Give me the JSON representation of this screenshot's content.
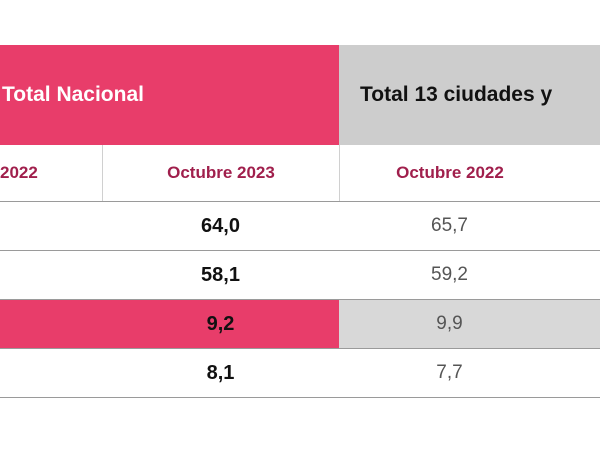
{
  "header": {
    "group_left": "Total Nacional",
    "group_right": "Total 13 ciudades y"
  },
  "subheader": {
    "col1": "2022",
    "col2": "Octubre 2023",
    "col3": "Octubre 2022"
  },
  "rows": [
    {
      "total_nacional_oct_2023": "64,0",
      "ciudades_oct_2022": "65,7"
    },
    {
      "total_nacional_oct_2023": "58,1",
      "ciudades_oct_2022": "59,2"
    },
    {
      "total_nacional_oct_2023": "9,2",
      "ciudades_oct_2022": "9,9"
    },
    {
      "total_nacional_oct_2023": "8,1",
      "ciudades_oct_2022": "7,7"
    }
  ],
  "colors": {
    "accent_pink": "#e83d6a",
    "header_grey": "#cdcdcd",
    "subheader_text": "#a01f4c",
    "highlight_grey": "#d8d8d8"
  }
}
